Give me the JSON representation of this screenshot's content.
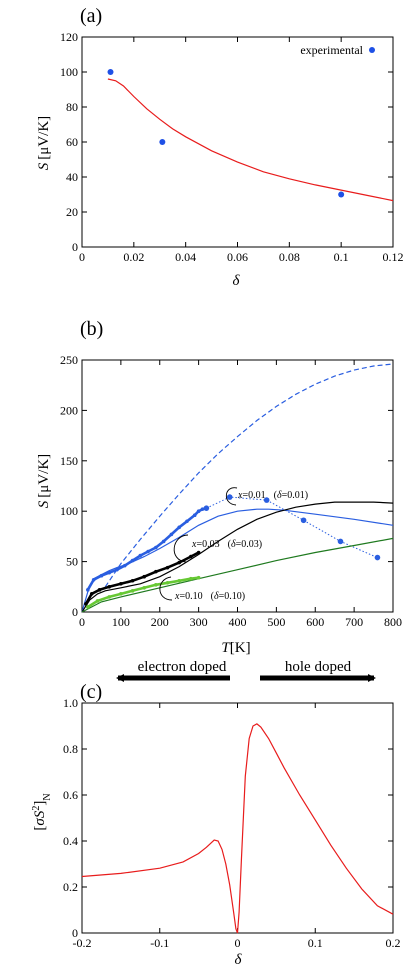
{
  "chart_data": [
    {
      "panel": "(a)",
      "type": "line+scatter",
      "xlabel_var": "δ",
      "ylabel_var": "S",
      "ylabel_unit": "[μV/K]",
      "xlim": [
        0,
        0.12
      ],
      "ylim": [
        0,
        120
      ],
      "xticks": [
        "0",
        "0.02",
        "0.04",
        "0.06",
        "0.08",
        "0.1",
        "0.12"
      ],
      "yticks": [
        "0",
        "20",
        "40",
        "60",
        "80",
        "100",
        "120"
      ],
      "legend": {
        "label": "experimental",
        "color": "#1e50e6",
        "placement": "top-right"
      },
      "grid": false,
      "series": [
        {
          "kind": "line",
          "color": "#e81c1c",
          "x": [
            0.01,
            0.013,
            0.016,
            0.02,
            0.025,
            0.03,
            0.035,
            0.04,
            0.05,
            0.06,
            0.07,
            0.08,
            0.09,
            0.1,
            0.11,
            0.12
          ],
          "y": [
            96,
            95,
            92,
            86,
            79,
            73,
            67.5,
            63,
            55,
            48.5,
            43,
            39,
            35.5,
            32.5,
            29.5,
            26.5
          ]
        },
        {
          "kind": "scatter",
          "name": "experimental",
          "color": "#1e50e6",
          "x": [
            0.011,
            0.031,
            0.1
          ],
          "y": [
            100,
            60,
            30
          ]
        }
      ]
    },
    {
      "panel": "(b)",
      "type": "line+scatter",
      "xlabel_var": "T",
      "xlabel_unit": "[K]",
      "ylabel_var": "S",
      "ylabel_unit": "[μV/K]",
      "xlim": [
        0,
        800
      ],
      "ylim": [
        0,
        250
      ],
      "xticks": [
        "0",
        "100",
        "200",
        "300",
        "400",
        "500",
        "600",
        "700",
        "800"
      ],
      "yticks": [
        "0",
        "50",
        "100",
        "150",
        "200",
        "250"
      ],
      "grid": false,
      "annotations": [
        {
          "x_label": "x",
          "x_value": "=0.01",
          "d_label": "δ",
          "d_value": "=0.01)"
        },
        {
          "x_label": "x",
          "x_value": "=0.03",
          "d_label": "δ",
          "d_value": "=0.03)"
        },
        {
          "x_label": "x",
          "x_value": "=0.10",
          "d_label": "δ",
          "d_value": "=0.10)"
        }
      ],
      "series": [
        {
          "kind": "dashed-line",
          "color": "#2a5ee0",
          "x": [
            60,
            100,
            150,
            200,
            250,
            300,
            350,
            400,
            450,
            500,
            550,
            600,
            650,
            700,
            750,
            800
          ],
          "y": [
            25,
            48,
            72,
            95,
            117,
            138,
            157,
            174,
            190,
            204,
            216,
            226,
            234,
            240,
            244,
            246
          ]
        },
        {
          "kind": "line",
          "color": "#2a5ee0",
          "x": [
            0,
            15,
            30,
            50,
            70,
            90,
            120,
            160,
            200,
            250,
            300,
            350,
            400,
            450,
            480,
            520,
            600,
            700,
            800
          ],
          "y": [
            0,
            20,
            33,
            37,
            41,
            44,
            48,
            55,
            63,
            74,
            86,
            95,
            100,
            102,
            102,
            101,
            97,
            92,
            86
          ]
        },
        {
          "kind": "scatter-dense",
          "color": "#2a5ee0",
          "x": [
            15,
            30,
            50,
            70,
            90,
            110,
            130,
            150,
            170,
            190,
            210,
            230,
            250,
            270,
            290,
            300,
            310,
            320
          ],
          "y": [
            22,
            32,
            36,
            39,
            42,
            46,
            51,
            56,
            60,
            64,
            70,
            77,
            84,
            90,
            96,
            100,
            102,
            103
          ]
        },
        {
          "kind": "dotted-scatter",
          "color": "#2a5ee0",
          "x": [
            320,
            380,
            475,
            570,
            665,
            760
          ],
          "y": [
            103,
            114,
            111,
            91,
            70,
            54
          ]
        },
        {
          "kind": "line",
          "color": "#000000",
          "x": [
            0,
            20,
            40,
            60,
            100,
            150,
            200,
            250,
            300,
            350,
            400,
            450,
            500,
            550,
            600,
            650,
            700,
            750,
            800
          ],
          "y": [
            0,
            12,
            18,
            21,
            24,
            28,
            35,
            45,
            57,
            70,
            82,
            92,
            99,
            104,
            107,
            109,
            109,
            109,
            108
          ]
        },
        {
          "kind": "scatter-dense",
          "color": "#000000",
          "x": [
            10,
            25,
            45,
            70,
            100,
            130,
            160,
            190,
            220,
            250,
            280,
            300
          ],
          "y": [
            8,
            18,
            22,
            25,
            28,
            31,
            35,
            40,
            44,
            49,
            55,
            59
          ]
        },
        {
          "kind": "line",
          "color": "#1f7a1f",
          "x": [
            0,
            50,
            100,
            200,
            300,
            400,
            500,
            600,
            700,
            800
          ],
          "y": [
            0,
            10,
            15,
            24,
            33,
            42,
            51,
            59,
            66,
            73
          ]
        },
        {
          "kind": "scatter-dense",
          "color": "#67c934",
          "x": [
            15,
            40,
            70,
            100,
            130,
            160,
            190,
            220,
            250,
            280,
            300
          ],
          "y": [
            5,
            11,
            15,
            18,
            21,
            24,
            27,
            29,
            31,
            33,
            34
          ]
        }
      ]
    },
    {
      "panel": "(c)",
      "type": "line",
      "xlabel_var": "δ",
      "ylabel_sigma": "σS",
      "ylabel_sup": "2",
      "ylabel_sub": "N",
      "xlim": [
        -0.2,
        0.2
      ],
      "ylim": [
        0,
        1.1
      ],
      "xticks": [
        "-0.2",
        "-0.1",
        "0",
        "0.1",
        "0.2"
      ],
      "yticks": [
        "0",
        "0.2",
        "0.4",
        "0.6",
        "0.8",
        "1.0"
      ],
      "grid": false,
      "arrows": {
        "left": "electron doped",
        "right": "hole doped"
      },
      "series": [
        {
          "kind": "line",
          "color": "#e81c1c",
          "x": [
            -0.2,
            -0.15,
            -0.1,
            -0.07,
            -0.05,
            -0.04,
            -0.03,
            -0.025,
            -0.02,
            -0.015,
            -0.01,
            -0.005,
            -0.002,
            0,
            0.002,
            0.005,
            0.01,
            0.015,
            0.02,
            0.025,
            0.03,
            0.04,
            0.05,
            0.06,
            0.08,
            0.1,
            0.12,
            0.14,
            0.16,
            0.18,
            0.2
          ],
          "y": [
            0.27,
            0.285,
            0.31,
            0.34,
            0.38,
            0.41,
            0.445,
            0.44,
            0.4,
            0.33,
            0.23,
            0.1,
            0.02,
            0.0,
            0.1,
            0.35,
            0.75,
            0.93,
            0.99,
            1.0,
            0.985,
            0.93,
            0.86,
            0.79,
            0.66,
            0.54,
            0.42,
            0.31,
            0.21,
            0.13,
            0.09
          ]
        }
      ]
    }
  ]
}
